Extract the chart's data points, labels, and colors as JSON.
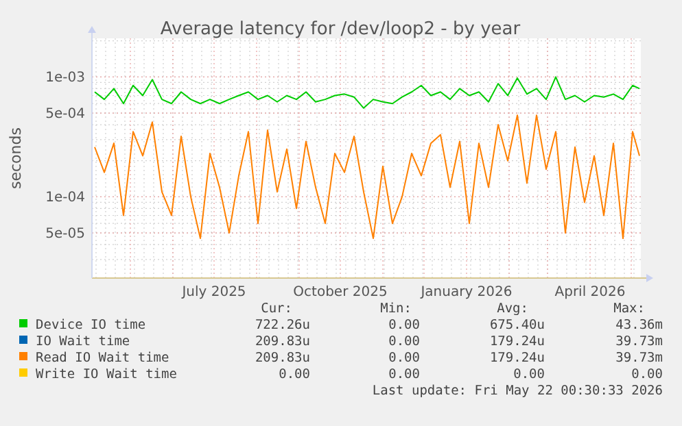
{
  "chart_data": {
    "type": "line",
    "title": "Average latency for /dev/loop2 - by year",
    "ylabel": "seconds",
    "log": true,
    "grid": true,
    "legend": "bottom",
    "marker": "none",
    "line_style": "solid",
    "xlim": [
      "2025-04-03",
      "2026-05-08"
    ],
    "xticks": [
      {
        "value": "2025-07-01",
        "label": "July 2025"
      },
      {
        "value": "2025-10-01",
        "label": "October 2025"
      },
      {
        "value": "2026-01-01",
        "label": "January 2026"
      },
      {
        "value": "2026-04-01",
        "label": "April 2026"
      }
    ],
    "ylim": [
      2.1e-05,
      0.0021
    ],
    "yticks": [
      {
        "value": 5e-05,
        "label": "5e-05"
      },
      {
        "value": 0.0001,
        "label": "1e-04"
      },
      {
        "value": 0.0005,
        "label": "5e-04"
      },
      {
        "value": 0.001,
        "label": "1e-03"
      }
    ],
    "x": [
      "2025-04-05",
      "2025-04-12",
      "2025-04-19",
      "2025-04-26",
      "2025-05-03",
      "2025-05-10",
      "2025-05-17",
      "2025-05-24",
      "2025-05-31",
      "2025-06-07",
      "2025-06-14",
      "2025-06-21",
      "2025-06-28",
      "2025-07-05",
      "2025-07-12",
      "2025-07-19",
      "2025-07-26",
      "2025-08-02",
      "2025-08-09",
      "2025-08-16",
      "2025-08-23",
      "2025-08-30",
      "2025-09-06",
      "2025-09-13",
      "2025-09-20",
      "2025-09-27",
      "2025-10-04",
      "2025-10-11",
      "2025-10-18",
      "2025-10-25",
      "2025-11-01",
      "2025-11-08",
      "2025-11-15",
      "2025-11-22",
      "2025-11-29",
      "2025-12-06",
      "2025-12-13",
      "2025-12-20",
      "2025-12-27",
      "2026-01-03",
      "2026-01-10",
      "2026-01-17",
      "2026-01-24",
      "2026-01-31",
      "2026-02-07",
      "2026-02-14",
      "2026-02-21",
      "2026-02-28",
      "2026-03-07",
      "2026-03-14",
      "2026-03-21",
      "2026-03-28",
      "2026-04-04",
      "2026-04-11",
      "2026-04-18",
      "2026-04-25",
      "2026-05-02",
      "2026-05-07"
    ],
    "series": [
      {
        "name": "Device IO time",
        "color": "#00cc00",
        "values": [
          0.00075,
          0.00065,
          0.0008,
          0.0006,
          0.00085,
          0.0007,
          0.00095,
          0.00065,
          0.0006,
          0.00075,
          0.00065,
          0.0006,
          0.00065,
          0.0006,
          0.00065,
          0.0007,
          0.00075,
          0.00065,
          0.0007,
          0.00062,
          0.0007,
          0.00065,
          0.00075,
          0.00062,
          0.00065,
          0.0007,
          0.00072,
          0.00068,
          0.00055,
          0.00065,
          0.00062,
          0.0006,
          0.00068,
          0.00075,
          0.00085,
          0.0007,
          0.00075,
          0.00065,
          0.0008,
          0.0007,
          0.00075,
          0.00062,
          0.00088,
          0.0007,
          0.00098,
          0.00072,
          0.0008,
          0.00065,
          0.001,
          0.00065,
          0.0007,
          0.00062,
          0.0007,
          0.00068,
          0.00072,
          0.00065,
          0.00085,
          0.0008
        ]
      },
      {
        "name": "IO Wait time",
        "color": "#0066b3",
        "values": [
          null,
          null,
          null,
          null,
          null,
          null,
          null,
          null,
          null,
          null,
          null,
          null,
          null,
          null,
          null,
          null,
          null,
          null,
          null,
          null,
          null,
          null,
          null,
          null,
          null,
          null,
          null,
          null,
          null,
          null,
          null,
          null,
          null,
          null,
          null,
          null,
          null,
          null,
          null,
          null,
          null,
          null,
          null,
          null,
          null,
          null,
          null,
          null,
          null,
          null,
          null,
          null,
          null,
          null,
          null,
          null,
          null,
          null
        ]
      },
      {
        "name": "Read IO Wait time",
        "color": "#ff8000",
        "values": [
          0.00026,
          0.00016,
          0.00028,
          7e-05,
          0.00035,
          0.00022,
          0.00042,
          0.00011,
          7e-05,
          0.00032,
          0.0001,
          4.5e-05,
          0.00023,
          0.00012,
          5e-05,
          0.00015,
          0.00035,
          6e-05,
          0.00036,
          0.00011,
          0.00025,
          8e-05,
          0.00029,
          0.00012,
          6e-05,
          0.00023,
          0.00016,
          0.00032,
          0.00011,
          4.5e-05,
          0.00018,
          6e-05,
          0.0001,
          0.00023,
          0.00015,
          0.00028,
          0.00033,
          0.00012,
          0.00029,
          6e-05,
          0.00028,
          0.00012,
          0.0004,
          0.0002,
          0.00048,
          0.00013,
          0.00048,
          0.00017,
          0.00035,
          5e-05,
          0.00026,
          9e-05,
          0.00022,
          7e-05,
          0.00028,
          4.5e-05,
          0.00035,
          0.00022
        ]
      },
      {
        "name": "Write IO Wait time",
        "color": "#ffcc00",
        "values": [
          null,
          null,
          null,
          null,
          null,
          null,
          null,
          null,
          null,
          null,
          null,
          null,
          null,
          null,
          null,
          null,
          null,
          null,
          null,
          null,
          null,
          null,
          null,
          null,
          null,
          null,
          null,
          null,
          null,
          null,
          null,
          null,
          null,
          null,
          null,
          null,
          null,
          null,
          null,
          null,
          null,
          null,
          null,
          null,
          null,
          null,
          null,
          null,
          null,
          null,
          null,
          null,
          null,
          null,
          null,
          null,
          null,
          null
        ]
      }
    ],
    "annotations": [
      "Cur:",
      "Min:",
      "Avg:",
      "Max:",
      "722.26u",
      "0.00",
      "675.40u",
      "43.36m",
      "209.83u",
      "0.00",
      "179.24u",
      "39.73m",
      "209.83u",
      "0.00",
      "179.24u",
      "39.73m",
      "0.00",
      "0.00",
      "0.00",
      "0.00",
      "Last update: Fri May 22 00:30:33 2026"
    ]
  }
}
